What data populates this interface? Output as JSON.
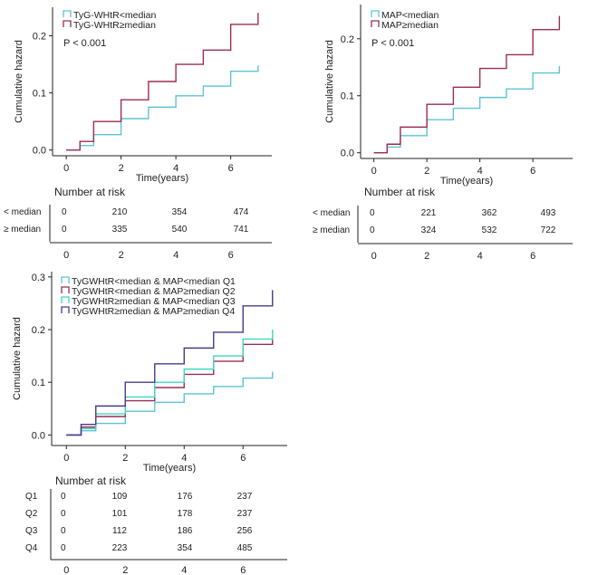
{
  "chart_data": [
    {
      "type": "line",
      "id": "tyg",
      "step": true,
      "title": "",
      "xlabel": "Time(years)",
      "ylabel": "Cumulative hazard",
      "xlim": [
        -0.5,
        7.5
      ],
      "ylim": [
        -0.01,
        0.25
      ],
      "xticks": [
        0,
        2,
        4,
        6
      ],
      "yticks": [
        0.0,
        0.1,
        0.2
      ],
      "ytick_labels": [
        "0.0",
        "0.1",
        "0.2"
      ],
      "pvalue": "P < 0.001",
      "legend_position": "top-left",
      "series": [
        {
          "name": "TyG-WHtR<median",
          "color": "#5cc4d6",
          "x": [
            0,
            0.5,
            1,
            2,
            3,
            4,
            5,
            6,
            7
          ],
          "y": [
            0,
            0.008,
            0.027,
            0.055,
            0.075,
            0.095,
            0.112,
            0.138,
            0.148
          ]
        },
        {
          "name": "TyG-WHtR≥median",
          "color": "#9b2d55",
          "x": [
            0,
            0.5,
            1,
            2,
            3,
            4,
            5,
            6,
            7
          ],
          "y": [
            0,
            0.015,
            0.05,
            0.088,
            0.12,
            0.15,
            0.175,
            0.22,
            0.24
          ]
        }
      ],
      "risk_table": {
        "title": "Number at risk",
        "rows": [
          {
            "label": "< median",
            "values": [
              "0",
              "210",
              "354",
              "474"
            ]
          },
          {
            "label": "≥ median",
            "values": [
              "0",
              "335",
              "540",
              "741"
            ]
          }
        ],
        "ticks": [
          "0",
          "2",
          "4",
          "6"
        ]
      }
    },
    {
      "type": "line",
      "id": "map",
      "step": true,
      "title": "",
      "xlabel": "Time(years)",
      "ylabel": "Cumulative hazard",
      "xlim": [
        -0.5,
        7.5
      ],
      "ylim": [
        -0.01,
        0.26
      ],
      "xticks": [
        0,
        2,
        4,
        6
      ],
      "yticks": [
        0.0,
        0.1,
        0.2
      ],
      "ytick_labels": [
        "0.0",
        "0.1",
        "0.2"
      ],
      "pvalue": "P < 0.001",
      "legend_position": "top-left",
      "series": [
        {
          "name": "MAP<median",
          "color": "#5cc4d6",
          "x": [
            0,
            0.5,
            1,
            2,
            3,
            4,
            5,
            6,
            7
          ],
          "y": [
            0,
            0.01,
            0.03,
            0.058,
            0.078,
            0.097,
            0.112,
            0.14,
            0.152
          ]
        },
        {
          "name": "MAP≥median",
          "color": "#9b2d55",
          "x": [
            0,
            0.5,
            1,
            2,
            3,
            4,
            5,
            6,
            7
          ],
          "y": [
            0,
            0.015,
            0.045,
            0.085,
            0.115,
            0.148,
            0.172,
            0.216,
            0.24
          ]
        }
      ],
      "risk_table": {
        "title": "Number at risk",
        "rows": [
          {
            "label": "< median",
            "values": [
              "0",
              "221",
              "362",
              "493"
            ]
          },
          {
            "label": "≥ median",
            "values": [
              "0",
              "324",
              "532",
              "722"
            ]
          }
        ],
        "ticks": [
          "0",
          "2",
          "4",
          "6"
        ]
      }
    },
    {
      "type": "line",
      "id": "combined",
      "step": true,
      "title": "",
      "xlabel": "Time(years)",
      "ylabel": "Cumulative hazard",
      "xlim": [
        -0.5,
        7.5
      ],
      "ylim": [
        -0.02,
        0.31
      ],
      "xticks": [
        0,
        2,
        4,
        6
      ],
      "yticks": [
        0.0,
        0.1,
        0.2,
        0.3
      ],
      "ytick_labels": [
        "0.0",
        "0.1",
        "0.2",
        "0.3"
      ],
      "legend_position": "top-left",
      "series": [
        {
          "name": "TyGWHtR<median & MAP<median Q1",
          "color": "#5cc4d6",
          "x": [
            0,
            0.5,
            1,
            2,
            3,
            4,
            5,
            6,
            7
          ],
          "y": [
            0,
            0.008,
            0.022,
            0.045,
            0.062,
            0.078,
            0.092,
            0.108,
            0.12
          ]
        },
        {
          "name": "TyGWHtR<median & MAP≥median Q2",
          "color": "#9b2d55",
          "x": [
            0,
            0.5,
            1,
            2,
            3,
            4,
            5,
            6,
            7
          ],
          "y": [
            0,
            0.015,
            0.035,
            0.065,
            0.09,
            0.115,
            0.14,
            0.172,
            0.185
          ]
        },
        {
          "name": "TyGWHtR≥median & MAP<median Q3",
          "color": "#3fd8c2",
          "x": [
            0,
            0.5,
            1,
            2,
            3,
            4,
            5,
            6,
            7
          ],
          "y": [
            0,
            0.012,
            0.04,
            0.072,
            0.1,
            0.125,
            0.15,
            0.182,
            0.2
          ]
        },
        {
          "name": "TyGWHtR≥median & MAP≥median Q4",
          "color": "#4a3a8c",
          "x": [
            0,
            0.5,
            1,
            2,
            3,
            4,
            5,
            6,
            7
          ],
          "y": [
            0,
            0.02,
            0.055,
            0.1,
            0.135,
            0.165,
            0.195,
            0.245,
            0.275
          ]
        }
      ],
      "risk_table": {
        "title": "Number at risk",
        "rows": [
          {
            "label": "Q1",
            "values": [
              "0",
              "109",
              "176",
              "237"
            ]
          },
          {
            "label": "Q2",
            "values": [
              "0",
              "101",
              "178",
              "237"
            ]
          },
          {
            "label": "Q3",
            "values": [
              "0",
              "112",
              "186",
              "256"
            ]
          },
          {
            "label": "Q4",
            "values": [
              "0",
              "223",
              "354",
              "485"
            ]
          }
        ],
        "ticks": [
          "0",
          "2",
          "4",
          "6"
        ]
      }
    }
  ]
}
